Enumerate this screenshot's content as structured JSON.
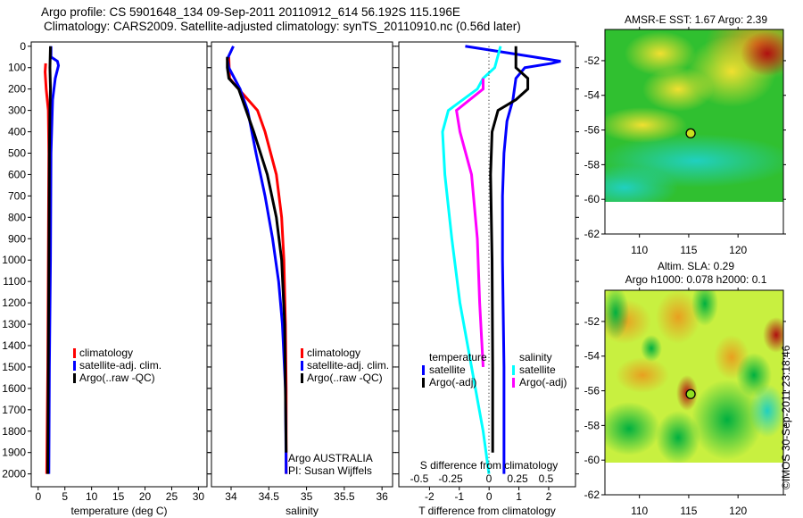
{
  "titles": {
    "line1": "Argo profile: CS 5901648_134 09-Sep-2011 20110912_614 56.192S 115.196E",
    "line2": "Climatology: CARS2009. Satellite-adjusted climatology: synTS_20110910.nc (0.56d later)"
  },
  "credit": "©IMOS 30-Sep-2011 23:18:46",
  "colors": {
    "climatology": "#ff0000",
    "satellite": "#0000ff",
    "argo": "#000000",
    "sal_satellite": "#00ffff",
    "sal_argo": "#ff00ff"
  },
  "chart_data": [
    {
      "type": "line",
      "id": "temperature",
      "xlabel": "temperature (deg C)",
      "ylabel": "",
      "xlim": [
        -1.3,
        31.6
      ],
      "ylim": [
        2060,
        -20
      ],
      "xticks": [
        0,
        5,
        10,
        15,
        20,
        25,
        30
      ],
      "yticks": [
        0,
        100,
        200,
        300,
        400,
        500,
        600,
        700,
        800,
        900,
        1000,
        1100,
        1200,
        1300,
        1400,
        1500,
        1600,
        1700,
        1800,
        1900,
        2000
      ],
      "legend": [
        "climatology",
        "satellite-adj. clim.",
        "Argo(..raw -QC)"
      ],
      "series": [
        {
          "name": "climatology",
          "color": "#ff0000",
          "depth": [
            80,
            120,
            200,
            300,
            500,
            1000,
            1500,
            2000
          ],
          "values": [
            1.4,
            1.3,
            1.5,
            1.9,
            2.0,
            1.9,
            1.8,
            1.6
          ]
        },
        {
          "name": "satellite-adj. clim.",
          "color": "#0000ff",
          "depth": [
            0,
            50,
            70,
            90,
            150,
            250,
            500,
            1000,
            1500,
            2000
          ],
          "values": [
            2.4,
            2.4,
            3.6,
            3.8,
            3.2,
            2.7,
            2.4,
            2.3,
            2.1,
            2.0
          ]
        },
        {
          "name": "Argo(..raw -QC)",
          "color": "#000000",
          "depth": [
            0,
            100,
            200,
            300,
            500,
            1000,
            1500,
            2000
          ],
          "values": [
            2.3,
            2.2,
            2.3,
            2.2,
            2.1,
            2.0,
            1.9,
            1.8
          ]
        }
      ]
    },
    {
      "type": "line",
      "id": "salinity",
      "xlabel": "salinity",
      "xlim": [
        33.74,
        36.14
      ],
      "ylim": [
        2060,
        -20
      ],
      "xticks": [
        34,
        34.5,
        35,
        35.5,
        36
      ],
      "legend": [
        "climatology",
        "satellite-adj. clim.",
        "Argo(..raw -QC)"
      ],
      "annotation": [
        "Argo AUSTRALIA",
        "PI: Susan Wijffels"
      ],
      "series": [
        {
          "name": "climatology",
          "color": "#ff0000",
          "depth": [
            50,
            150,
            200,
            300,
            400,
            600,
            800,
            1000,
            1300,
            1600,
            2000
          ],
          "values": [
            33.97,
            33.98,
            34.1,
            34.35,
            34.45,
            34.6,
            34.67,
            34.7,
            34.72,
            34.73,
            34.73
          ]
        },
        {
          "name": "satellite-adj. clim.",
          "color": "#0000ff",
          "depth": [
            0,
            60,
            100,
            200,
            300,
            500,
            700,
            900,
            1100,
            1300,
            1600,
            2000
          ],
          "values": [
            34.03,
            33.95,
            33.97,
            34.12,
            34.22,
            34.33,
            34.45,
            34.55,
            34.63,
            34.68,
            34.72,
            34.73
          ]
        },
        {
          "name": "Argo(..raw -QC)",
          "color": "#000000",
          "depth": [
            50,
            100,
            150,
            200,
            300,
            400,
            600,
            800,
            1000,
            1300,
            1600,
            1900
          ],
          "values": [
            33.95,
            33.95,
            33.97,
            34.1,
            34.2,
            34.3,
            34.48,
            34.6,
            34.67,
            34.71,
            34.72,
            34.73
          ]
        }
      ]
    },
    {
      "type": "line",
      "id": "difference",
      "xlabel": "T difference from climatology",
      "x2label": "S difference from climatology",
      "xlim": [
        -3.03,
        2.9
      ],
      "ylim": [
        2060,
        -20
      ],
      "xticks": [
        -2,
        -1,
        0,
        1,
        2
      ],
      "x2ticks": [
        -0.5,
        -0.25,
        0,
        0.25,
        0.5
      ],
      "legend_temperature": {
        "title": "temperature",
        "items": [
          "satellite",
          "Argo(-adj)"
        ]
      },
      "legend_salinity": {
        "title": "salinity",
        "items": [
          "satellite",
          "Argo(-adj)"
        ]
      },
      "series": [
        {
          "name": "temperature satellite",
          "color": "#0000ff",
          "depth": [
            0,
            50,
            70,
            80,
            100,
            150,
            250,
            350,
            500,
            700,
            1000,
            1500,
            2000
          ],
          "values": [
            -0.8,
            1.5,
            2.4,
            2.1,
            1.2,
            0.9,
            0.8,
            0.6,
            0.5,
            0.45,
            0.45,
            0.5,
            0.5
          ]
        },
        {
          "name": "temperature Argo(-adj)",
          "color": "#000000",
          "depth": [
            0,
            100,
            150,
            200,
            250,
            300,
            400,
            600,
            1000,
            1500,
            1900
          ],
          "values": [
            0.9,
            0.9,
            1.3,
            1.3,
            0.9,
            0.3,
            0.1,
            0.05,
            0.1,
            0.12,
            0.12
          ]
        },
        {
          "name": "salinity satellite",
          "color": "#00ffff",
          "depth": [
            0,
            100,
            150,
            200,
            300,
            400,
            600,
            900,
            1200,
            1500,
            1800,
            2000
          ],
          "values": [
            0.1,
            0.05,
            -0.05,
            -0.1,
            -0.35,
            -0.4,
            -0.38,
            -0.32,
            -0.25,
            -0.15,
            -0.05,
            0.0
          ]
        },
        {
          "name": "salinity Argo(-adj)",
          "color": "#ff00ff",
          "depth": [
            150,
            200,
            300,
            400,
            600,
            900,
            1200,
            1500
          ],
          "values": [
            -0.05,
            -0.05,
            -0.28,
            -0.25,
            -0.15,
            -0.1,
            -0.08,
            -0.05
          ]
        }
      ]
    },
    {
      "type": "heatmap",
      "id": "sst_map",
      "title": "AMSR-E SST: 1.67 Argo: 2.39",
      "xlim": [
        106.5,
        124.6
      ],
      "ylim": [
        -62,
        -50.2
      ],
      "xticks": [
        110,
        115,
        120
      ],
      "yticks": [
        -52,
        -54,
        -56,
        -58,
        -60,
        -62
      ],
      "marker": {
        "lon": 115.196,
        "lat": -56.192
      }
    },
    {
      "type": "heatmap",
      "id": "sla_map",
      "title": "Altim. SLA: 0.29",
      "subtitle": "Argo h1000: 0.078 h2000: 0.1",
      "xlim": [
        106.5,
        124.6
      ],
      "ylim": [
        -62,
        -50.2
      ],
      "xticks": [
        110,
        115,
        120
      ],
      "yticks": [
        -52,
        -54,
        -56,
        -58,
        -60,
        -62
      ],
      "marker": {
        "lon": 115.196,
        "lat": -56.192
      }
    }
  ]
}
